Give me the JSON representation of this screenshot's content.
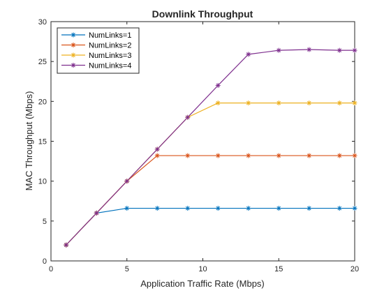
{
  "chart_data": {
    "type": "line",
    "title": "Downlink Throughput",
    "xlabel": "Application Traffic Rate (Mbps)",
    "ylabel": "MAC Throughput (Mbps)",
    "xlim": [
      0,
      20
    ],
    "ylim": [
      0,
      30
    ],
    "xticks": [
      0,
      5,
      10,
      15,
      20
    ],
    "yticks": [
      0,
      5,
      10,
      15,
      20,
      25,
      30
    ],
    "grid": false,
    "legend_position": "top-left",
    "marker": "asterisk",
    "x": [
      1,
      3,
      5,
      7,
      9,
      11,
      13,
      15,
      17,
      19,
      20
    ],
    "series": [
      {
        "name": "NumLinks=1",
        "color": "#0072BD",
        "values": [
          2.0,
          6.0,
          6.6,
          6.6,
          6.6,
          6.6,
          6.6,
          6.6,
          6.6,
          6.6,
          6.6
        ]
      },
      {
        "name": "NumLinks=2",
        "color": "#D95319",
        "values": [
          2.0,
          6.0,
          10.0,
          13.2,
          13.2,
          13.2,
          13.2,
          13.2,
          13.2,
          13.2,
          13.2
        ]
      },
      {
        "name": "NumLinks=3",
        "color": "#EDB120",
        "values": [
          2.0,
          6.0,
          10.0,
          14.0,
          18.0,
          19.8,
          19.8,
          19.8,
          19.8,
          19.8,
          19.8
        ]
      },
      {
        "name": "NumLinks=4",
        "color": "#7E2F8E",
        "values": [
          2.0,
          6.0,
          10.0,
          14.0,
          18.0,
          22.0,
          25.9,
          26.4,
          26.5,
          26.4,
          26.4
        ]
      }
    ]
  }
}
